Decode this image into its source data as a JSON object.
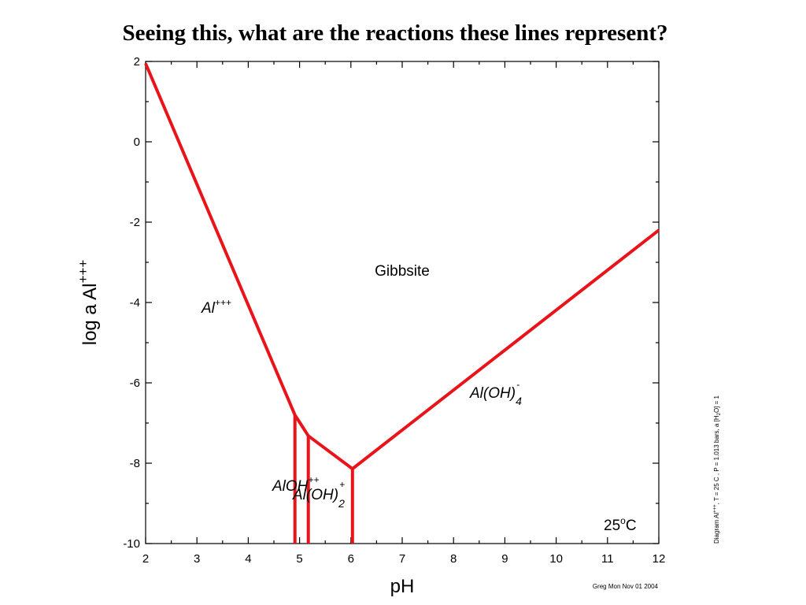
{
  "title": "Seeing this, what are the reactions these lines represent?",
  "colors": {
    "line": "#e8141a",
    "axis": "#000000"
  },
  "chart_data": {
    "type": "line",
    "xlabel": "pH",
    "ylabel_base": "log a Al",
    "ylabel_sup": "+++",
    "xlim": [
      2,
      12
    ],
    "ylim": [
      -10,
      2
    ],
    "x_ticks": [
      "2",
      "3",
      "4",
      "5",
      "6",
      "7",
      "8",
      "9",
      "10",
      "11",
      "12"
    ],
    "y_ticks": [
      "2",
      "0",
      "-2",
      "-4",
      "-6",
      "-8",
      "-10"
    ],
    "grid": false,
    "series": [
      {
        "points": [
          [
            2,
            1.95
          ],
          [
            4.91,
            -6.8
          ],
          [
            5.17,
            -7.32
          ],
          [
            6.03,
            -8.14
          ],
          [
            12,
            -2.2
          ]
        ]
      },
      {
        "points": [
          [
            4.91,
            -6.8
          ],
          [
            4.91,
            -10
          ]
        ]
      },
      {
        "points": [
          [
            5.17,
            -7.32
          ],
          [
            5.17,
            -10
          ]
        ]
      },
      {
        "points": [
          [
            6.03,
            -8.14
          ],
          [
            6.03,
            -10
          ]
        ]
      }
    ],
    "region_labels": {
      "gibbsite": "Gibbsite",
      "al3": {
        "base": "Al",
        "sup": "+++"
      },
      "aloh4": {
        "base": "Al(OH)",
        "sub": "4",
        "sup": "-"
      },
      "aloh": {
        "base": "AlOH",
        "sup": "++"
      },
      "aloh2": {
        "base": "Al(OH)",
        "sub": "2",
        "sup": "+"
      }
    },
    "temperature": {
      "value": "25",
      "sup": "o",
      "unit": "C"
    },
    "side_note": {
      "prefix": "Diagram Al",
      "sup": "+++",
      "middle": ",  T  =  25 C ,  P  =  1.013 bars,  a [H",
      "sub": "2",
      "suffix": "O]  =  1"
    },
    "credit": "Greg Mon Nov 01 2004"
  }
}
